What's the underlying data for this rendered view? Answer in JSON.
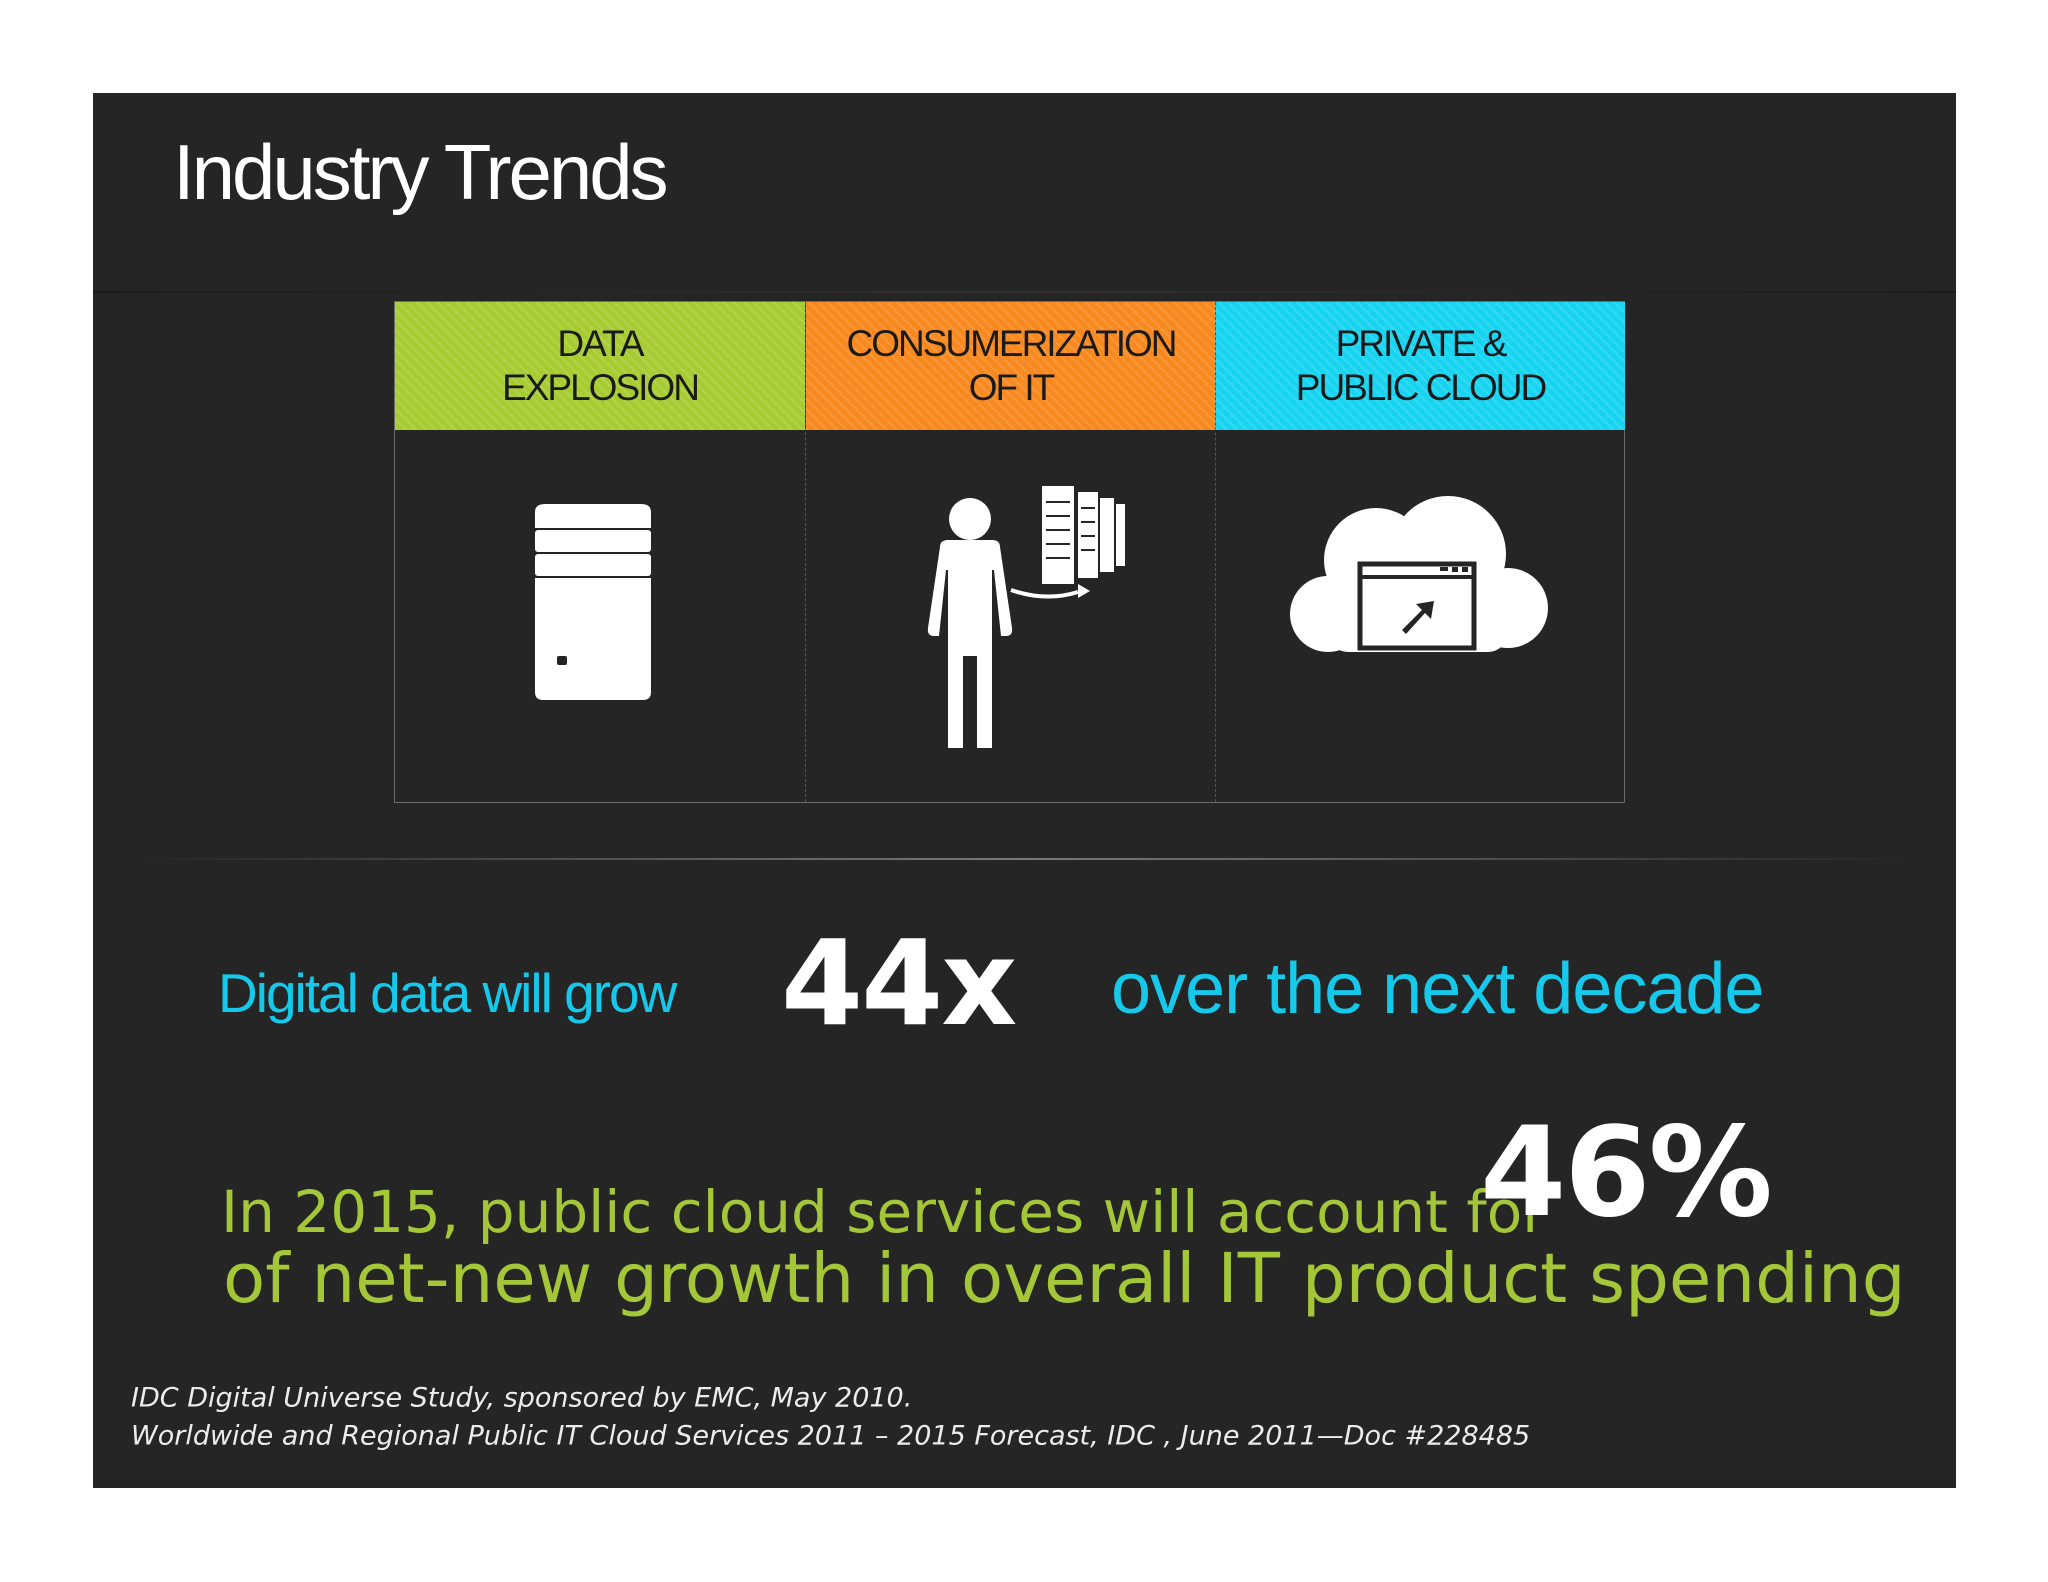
{
  "slide": {
    "title": "Industry Trends",
    "categories": [
      {
        "label": "DATA\nEXPLOSION",
        "color": "#a6cc31",
        "icon": "database-icon"
      },
      {
        "label": "CONSUMERIZATION\nOF IT",
        "color": "#f7891f",
        "icon": "person-server-icon"
      },
      {
        "label": "PRIVATE &\nPUBLIC CLOUD",
        "color": "#17d4f1",
        "icon": "cloud-window-icon"
      }
    ],
    "stat1": {
      "prefix": "Digital data will grow",
      "number": "44x",
      "suffix": "over the next decade",
      "color": "#16c8ea"
    },
    "stat2": {
      "line1": "In 2015, public cloud services will account for",
      "number": "46%",
      "line2": "of net-new growth in overall IT product spending",
      "color": "#a4c639"
    },
    "sources": [
      "IDC Digital Universe Study, sponsored by EMC, May 2010.",
      "Worldwide and Regional Public IT Cloud Services 2011 – 2015 Forecast, IDC , June 2011—Doc #228485"
    ]
  }
}
